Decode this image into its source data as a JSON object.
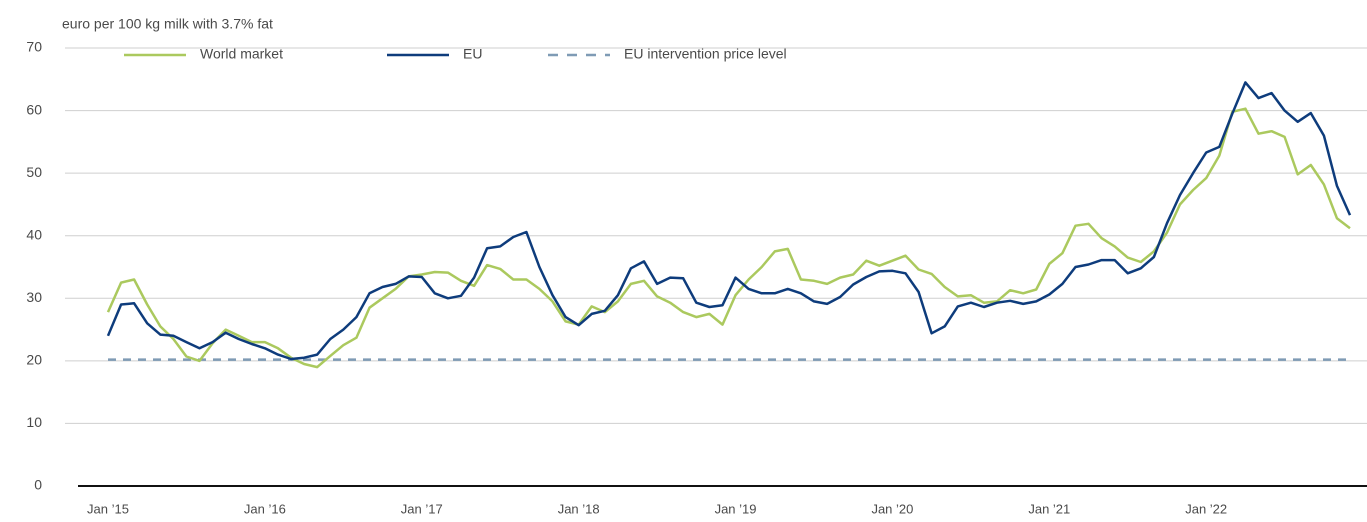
{
  "chart_data": {
    "type": "line",
    "y_label": "euro per 100 kg milk with 3.7% fat",
    "categories": [
      "Jan ’15",
      null,
      null,
      null,
      null,
      null,
      null,
      null,
      null,
      null,
      null,
      null,
      "Jan ’16",
      null,
      null,
      null,
      null,
      null,
      null,
      null,
      null,
      null,
      null,
      null,
      "Jan ’17",
      null,
      null,
      null,
      null,
      null,
      null,
      null,
      null,
      null,
      null,
      null,
      "Jan ’18",
      null,
      null,
      null,
      null,
      null,
      null,
      null,
      null,
      null,
      null,
      null,
      "Jan ’19",
      null,
      null,
      null,
      null,
      null,
      null,
      null,
      null,
      null,
      null,
      null,
      "Jan ’20",
      null,
      null,
      null,
      null,
      null,
      null,
      null,
      null,
      null,
      null,
      null,
      "Jan ’21",
      null,
      null,
      null,
      null,
      null,
      null,
      null,
      null,
      null,
      null,
      null,
      "Jan ’22",
      null,
      null,
      null,
      null,
      null,
      null,
      null,
      null,
      null,
      null,
      null
    ],
    "series": [
      {
        "name": "World market",
        "color": "#abc95e",
        "values": [
          27.8,
          32.5,
          33,
          29,
          25.5,
          23.5,
          20.7,
          20,
          22.8,
          25,
          24,
          23,
          23,
          22,
          20.5,
          19.5,
          19,
          20.8,
          22.5,
          23.7,
          28.5,
          30,
          31.5,
          33.5,
          33.8,
          34.2,
          34.1,
          32.8,
          32,
          35.3,
          34.7,
          33,
          33,
          31.5,
          29.5,
          26.3,
          25.8,
          28.7,
          27.8,
          29.5,
          32.3,
          32.8,
          30.3,
          29.3,
          27.8,
          27,
          27.5,
          25.8,
          30.5,
          33,
          35,
          37.5,
          37.9,
          33,
          32.8,
          32.3,
          33.3,
          33.8,
          36,
          35.2,
          36,
          36.8,
          34.6,
          33.9,
          31.8,
          30.3,
          30.5,
          29.3,
          29.5,
          31.3,
          30.8,
          31.4,
          35.5,
          37.2,
          41.6,
          41.9,
          39.6,
          38.3,
          36.5,
          35.8,
          37.5,
          40.5,
          45,
          47.3,
          49.2,
          52.8,
          59.8,
          60.3,
          56.3,
          56.7,
          55.8,
          49.8,
          51.3,
          48.2,
          42.8,
          41.2
        ]
      },
      {
        "name": "EU",
        "color": "#0e3c7c",
        "values": [
          24,
          29,
          29.2,
          26,
          24.2,
          24,
          23,
          22,
          23,
          24.5,
          23.5,
          22.7,
          22,
          21,
          20.3,
          20.5,
          21,
          23.5,
          25,
          27,
          30.8,
          31.8,
          32.3,
          33.5,
          33.4,
          30.8,
          30,
          30.4,
          33.3,
          38,
          38.3,
          39.8,
          40.6,
          35,
          30.5,
          27,
          25.7,
          27.5,
          28,
          30.5,
          34.8,
          35.9,
          32.3,
          33.3,
          33.2,
          29.3,
          28.6,
          28.9,
          33.3,
          31.5,
          30.8,
          30.8,
          31.5,
          30.8,
          29.5,
          29.1,
          30.2,
          32.2,
          33.4,
          34.3,
          34.4,
          34,
          31,
          24.4,
          25.5,
          28.7,
          29.3,
          28.6,
          29.3,
          29.6,
          29.1,
          29.5,
          30.6,
          32.3,
          35,
          35.4,
          36.1,
          36.1,
          34,
          34.8,
          36.6,
          42,
          46.5,
          50,
          53.3,
          54.2,
          59.5,
          64.5,
          62,
          62.8,
          60,
          58.2,
          59.6,
          56,
          48,
          43.3
        ]
      }
    ],
    "reference_line": {
      "name": "EU intervention price level",
      "value": 20.2,
      "color": "#7f9bb5",
      "dash": true
    },
    "ylim": [
      0,
      70
    ],
    "yticks": [
      0,
      10,
      20,
      30,
      40,
      50,
      60,
      70
    ],
    "grid": true,
    "legend": "top-left"
  }
}
